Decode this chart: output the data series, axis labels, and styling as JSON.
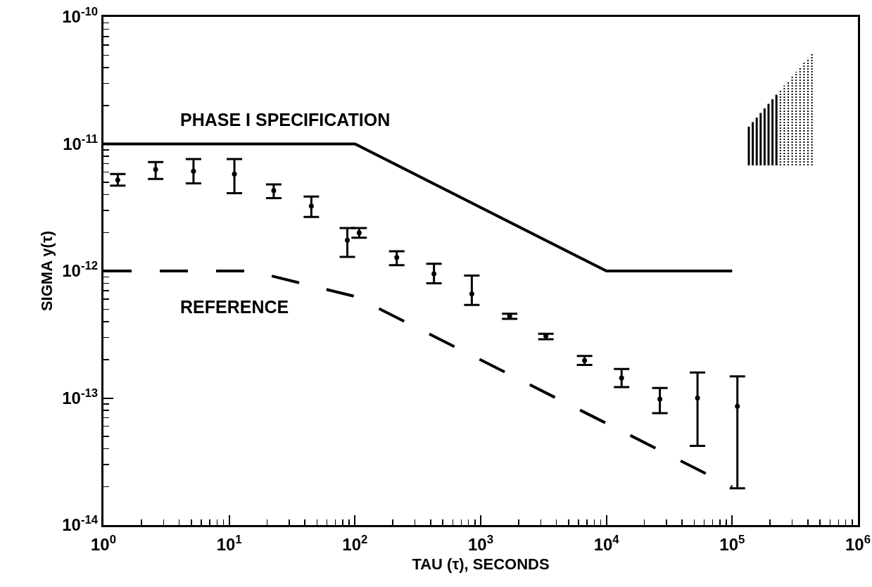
{
  "chart_data": {
    "type": "line",
    "xlabel": "TAU (τ), SECONDS",
    "ylabel": "SIGMA y(τ)",
    "log": "xy",
    "grid": false,
    "xlim": [
      1,
      1000000
    ],
    "ylim": [
      1e-14,
      1e-10
    ],
    "xticks": [
      {
        "value": 1,
        "label": "10$^{0}$"
      },
      {
        "value": 10,
        "label": "10$^{1}$"
      },
      {
        "value": 100,
        "label": "10$^{2}$"
      },
      {
        "value": 1000,
        "label": "10$^{3}$"
      },
      {
        "value": 10000,
        "label": "10$^{4}$"
      },
      {
        "value": 100000,
        "label": "10$^{5}$"
      },
      {
        "value": 1000000,
        "label": "10$^{6}$"
      }
    ],
    "yticks": [
      {
        "value": 1e-14,
        "label": "10$^{-14}$"
      },
      {
        "value": 1e-13,
        "label": "10$^{-13}$"
      },
      {
        "value": 1e-12,
        "label": "10$^{-12}$"
      },
      {
        "value": 1e-11,
        "label": "10$^{-11}$"
      },
      {
        "value": 1e-10,
        "label": "10$^{-10}$"
      }
    ],
    "annotations": [
      "PHASE I SPECIFICATION",
      "REFERENCE"
    ],
    "series": [
      {
        "line_style": "solid",
        "color": "#000000",
        "x": [
          1,
          100,
          10000,
          100000
        ],
        "values": [
          1e-11,
          1e-11,
          1e-12,
          1e-12
        ]
      },
      {
        "line_style": "dashed",
        "color": "#000000",
        "x": [
          1,
          15,
          100,
          100000
        ],
        "values": [
          1e-12,
          1e-12,
          6.3e-13,
          2e-14
        ]
      },
      {
        "type": "scatter",
        "marker": "circle",
        "color": "#000000",
        "x": [
          1.3,
          2.6,
          5.2,
          11,
          22.6,
          45,
          87,
          108,
          215,
          425,
          850,
          1700,
          3300,
          6700,
          13200,
          26600,
          53000,
          110000
        ],
        "values": [
          5.2e-12,
          6.3e-12,
          6.1e-12,
          5.8e-12,
          4.3e-12,
          3.24e-12,
          1.75e-12,
          2e-12,
          1.28e-12,
          9.5e-13,
          6.6e-13,
          4.4e-13,
          3.08e-13,
          1.97e-13,
          1.44e-13,
          9.8e-14,
          1e-13,
          8.6e-14
        ],
        "errors": [
          [
            4.7e-12,
            5.8e-12
          ],
          [
            5.3e-12,
            7.2e-12
          ],
          [
            4.9e-12,
            7.6e-12
          ],
          [
            4.1e-12,
            7.6e-12
          ],
          [
            3.75e-12,
            4.8e-12
          ],
          [
            2.66e-12,
            3.85e-12
          ],
          [
            1.29e-12,
            2.18e-12
          ],
          [
            1.83e-12,
            2.18e-12
          ],
          [
            1.11e-12,
            1.43e-12
          ],
          [
            8e-13,
            1.14e-12
          ],
          [
            5.4e-13,
            9.2e-13
          ],
          [
            4.2e-13,
            4.6e-13
          ],
          [
            2.9e-13,
            3.2e-13
          ],
          [
            1.82e-13,
            2.14e-13
          ],
          [
            1.22e-13,
            1.69e-13
          ],
          [
            7.6e-14,
            1.2e-13
          ],
          [
            4.2e-14,
            1.59e-13
          ],
          [
            1.95e-14,
            1.48e-13
          ]
        ]
      }
    ]
  }
}
